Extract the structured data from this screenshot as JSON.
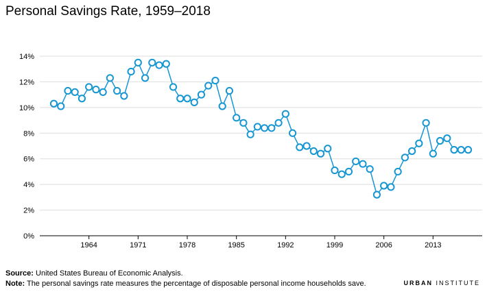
{
  "title": "Personal Savings Rate, 1959–2018",
  "footer": {
    "source_label": "Source:",
    "source_text": "United States Bureau of Economic Analysis.",
    "note_label": "Note:",
    "note_text": "The personal savings rate measures the percentage of disposable personal income households save."
  },
  "brand": {
    "part1": "URBAN",
    "part2": "INSTITUTE"
  },
  "colors": {
    "series": "#1696d2",
    "grid": "#dedede"
  },
  "chart_data": {
    "type": "line",
    "title": "Personal Savings Rate, 1959–2018",
    "xlabel": "",
    "ylabel": "",
    "xlim": [
      1957,
      2020
    ],
    "ylim": [
      0,
      14
    ],
    "yticks": [
      0,
      2,
      4,
      6,
      8,
      10,
      12,
      14
    ],
    "ytick_labels": [
      "0%",
      "2%",
      "4%",
      "6%",
      "8%",
      "10%",
      "12%",
      "14%"
    ],
    "xticks": [
      1964,
      1971,
      1978,
      1985,
      1992,
      1999,
      2006,
      2013
    ],
    "xtick_labels": [
      "1964",
      "1971",
      "1978",
      "1985",
      "1992",
      "1999",
      "2006",
      "2013"
    ],
    "grid": true,
    "x": [
      1959,
      1960,
      1961,
      1962,
      1963,
      1964,
      1965,
      1966,
      1967,
      1968,
      1969,
      1970,
      1971,
      1972,
      1973,
      1974,
      1975,
      1976,
      1977,
      1978,
      1979,
      1980,
      1981,
      1982,
      1983,
      1984,
      1985,
      1986,
      1987,
      1988,
      1989,
      1990,
      1991,
      1992,
      1993,
      1994,
      1995,
      1996,
      1997,
      1998,
      1999,
      2000,
      2001,
      2002,
      2003,
      2004,
      2005,
      2006,
      2007,
      2008,
      2009,
      2010,
      2011,
      2012,
      2013,
      2014,
      2015,
      2016,
      2017,
      2018
    ],
    "values": [
      10.3,
      10.1,
      11.3,
      11.2,
      10.7,
      11.6,
      11.4,
      11.2,
      12.3,
      11.3,
      10.9,
      12.8,
      13.5,
      12.3,
      13.5,
      13.3,
      13.4,
      11.6,
      10.7,
      10.7,
      10.4,
      11.0,
      11.7,
      12.1,
      10.1,
      11.3,
      9.2,
      8.8,
      7.9,
      8.5,
      8.4,
      8.4,
      8.8,
      9.5,
      8.0,
      6.9,
      7.0,
      6.6,
      6.4,
      6.8,
      5.1,
      4.8,
      5.0,
      5.8,
      5.6,
      5.2,
      3.2,
      3.9,
      3.8,
      5.0,
      6.1,
      6.6,
      7.2,
      8.8,
      6.4,
      7.4,
      7.6,
      6.7,
      6.7,
      6.7
    ]
  }
}
